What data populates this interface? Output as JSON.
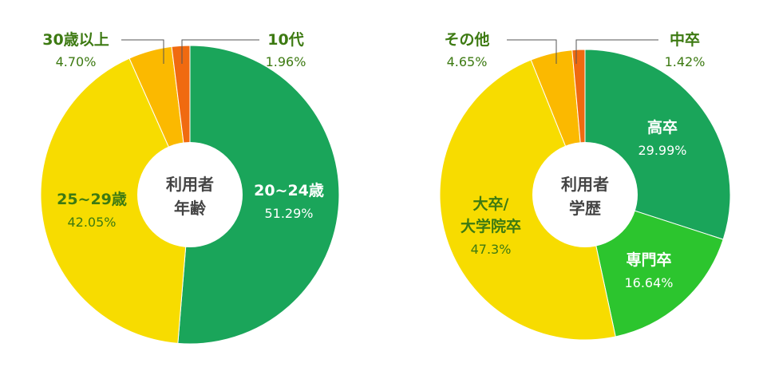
{
  "chart_data": [
    {
      "type": "pie",
      "donut": true,
      "center_label": [
        "利用者",
        "年齢"
      ],
      "slices": [
        {
          "name": "20~24歳",
          "value": 51.29,
          "value_text": "51.29%",
          "color": "#1aa55a"
        },
        {
          "name": "25~29歳",
          "value": 42.05,
          "value_text": "42.05%",
          "color": "#f7dc00"
        },
        {
          "name": "30歳以上",
          "value": 4.7,
          "value_text": "4.70%",
          "color": "#fbb900"
        },
        {
          "name": "10代",
          "value": 1.96,
          "value_text": "1.96%",
          "color": "#f06a10"
        }
      ]
    },
    {
      "type": "pie",
      "donut": true,
      "center_label": [
        "利用者",
        "学歴"
      ],
      "slices": [
        {
          "name": "高卒",
          "value": 29.99,
          "value_text": "29.99%",
          "color": "#1aa55a"
        },
        {
          "name": "専門卒",
          "value": 16.64,
          "value_text": "16.64%",
          "color": "#2cc52e"
        },
        {
          "name": "大卒/大学院卒",
          "value": 47.3,
          "value_text": "47.3%",
          "color": "#f7dc00"
        },
        {
          "name": "その他",
          "value": 4.65,
          "value_text": "4.65%",
          "color": "#fbb900"
        },
        {
          "name": "中卒",
          "value": 1.42,
          "value_text": "1.42%",
          "color": "#f06a10"
        }
      ]
    }
  ]
}
